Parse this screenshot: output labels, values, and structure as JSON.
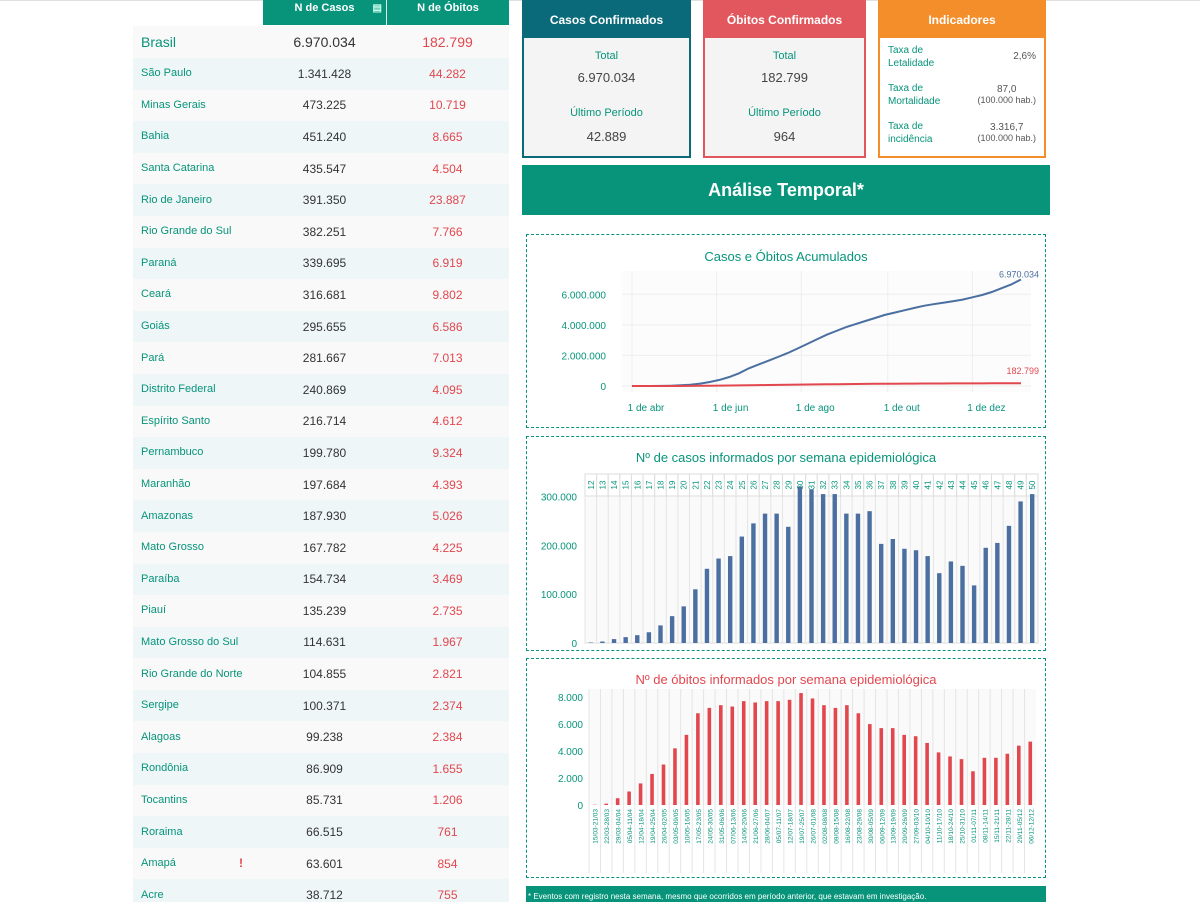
{
  "table": {
    "headers": {
      "cases": "N de Casos",
      "deaths": "N de Óbitos"
    },
    "rows": [
      {
        "name": "Brasil",
        "cases": "6.970.034",
        "deaths": "182.799"
      },
      {
        "name": "São Paulo",
        "cases": "1.341.428",
        "deaths": "44.282"
      },
      {
        "name": "Minas Gerais",
        "cases": "473.225",
        "deaths": "10.719"
      },
      {
        "name": "Bahia",
        "cases": "451.240",
        "deaths": "8.665"
      },
      {
        "name": "Santa Catarina",
        "cases": "435.547",
        "deaths": "4.504"
      },
      {
        "name": "Rio de Janeiro",
        "cases": "391.350",
        "deaths": "23.887"
      },
      {
        "name": "Rio Grande do Sul",
        "cases": "382.251",
        "deaths": "7.766"
      },
      {
        "name": "Paraná",
        "cases": "339.695",
        "deaths": "6.919"
      },
      {
        "name": "Ceará",
        "cases": "316.681",
        "deaths": "9.802"
      },
      {
        "name": "Goiás",
        "cases": "295.655",
        "deaths": "6.586"
      },
      {
        "name": "Pará",
        "cases": "281.667",
        "deaths": "7.013"
      },
      {
        "name": "Distrito Federal",
        "cases": "240.869",
        "deaths": "4.095"
      },
      {
        "name": "Espírito Santo",
        "cases": "216.714",
        "deaths": "4.612"
      },
      {
        "name": "Pernambuco",
        "cases": "199.780",
        "deaths": "9.324"
      },
      {
        "name": "Maranhão",
        "cases": "197.684",
        "deaths": "4.393"
      },
      {
        "name": "Amazonas",
        "cases": "187.930",
        "deaths": "5.026"
      },
      {
        "name": "Mato Grosso",
        "cases": "167.782",
        "deaths": "4.225"
      },
      {
        "name": "Paraíba",
        "cases": "154.734",
        "deaths": "3.469"
      },
      {
        "name": "Piauí",
        "cases": "135.239",
        "deaths": "2.735"
      },
      {
        "name": "Mato Grosso do Sul",
        "cases": "114.631",
        "deaths": "1.967"
      },
      {
        "name": "Rio Grande do Norte",
        "cases": "104.855",
        "deaths": "2.821"
      },
      {
        "name": "Sergipe",
        "cases": "100.371",
        "deaths": "2.374"
      },
      {
        "name": "Alagoas",
        "cases": "99.238",
        "deaths": "2.384"
      },
      {
        "name": "Rondônia",
        "cases": "86.909",
        "deaths": "1.655"
      },
      {
        "name": "Tocantins",
        "cases": "85.731",
        "deaths": "1.206"
      },
      {
        "name": "Roraima",
        "cases": "66.515",
        "deaths": "761"
      },
      {
        "name": "Amapá",
        "cases": "63.601",
        "deaths": "854",
        "alert": "!"
      },
      {
        "name": "Acre",
        "cases": "38.712",
        "deaths": "755"
      }
    ]
  },
  "cards": {
    "cases": {
      "title": "Casos Confirmados",
      "total_label": "Total",
      "total": "6.970.034",
      "last_label": "Último Período",
      "last": "42.889"
    },
    "deaths": {
      "title": "Óbitos Confirmados",
      "total_label": "Total",
      "total": "182.799",
      "last_label": "Último Período",
      "last": "964"
    },
    "indicators": {
      "title": "Indicadores",
      "items": [
        {
          "label": "Taxa de Letalidade",
          "value": "2,6%",
          "unit": ""
        },
        {
          "label": "Taxa de Mortalidade",
          "value": "87,0",
          "unit": "(100.000 hab.)"
        },
        {
          "label": "Taxa de incidência",
          "value": "3.316,7",
          "unit": "(100.000 hab.)"
        }
      ]
    }
  },
  "banner": "Análise Temporal*",
  "footer": "* Eventos com registro nesta semana, mesmo que ocorridos em período anterior, que estavam em investigação.",
  "colors": {
    "green": "#07947b",
    "blue": "#4a6fa0",
    "red": "#e2474e",
    "orange": "#f38e2b"
  },
  "chart_data": [
    {
      "type": "line",
      "title": "Casos e Óbitos Acumulados",
      "x_ticks": [
        "1 de abr",
        "1 de jun",
        "1 de ago",
        "1 de out",
        "1 de dez"
      ],
      "y_ticks": [
        "0",
        "2.000.000",
        "4.000.000",
        "6.000.000"
      ],
      "ylim": [
        0,
        7000000
      ],
      "series": [
        {
          "values_by_week": [
            0,
            300,
            2000,
            8000,
            20000,
            45000,
            85000,
            160000,
            260000,
            400000,
            590000,
            830000,
            1150000,
            1400000,
            1650000,
            1900000,
            2150000,
            2450000,
            2750000,
            3050000,
            3350000,
            3600000,
            3850000,
            4050000,
            4250000,
            4450000,
            4650000,
            4800000,
            4950000,
            5100000,
            5250000,
            5350000,
            5450000,
            5550000,
            5650000,
            5800000,
            5950000,
            6150000,
            6400000,
            6650000,
            6970034
          ],
          "end_label": "6.970.034",
          "color": "#4a6fa0"
        },
        {
          "values_by_week": [
            0,
            20,
            100,
            400,
            1200,
            3000,
            6000,
            11000,
            17000,
            25000,
            33000,
            42000,
            51000,
            60000,
            68000,
            75000,
            83000,
            91000,
            99000,
            107000,
            114000,
            121000,
            127000,
            133000,
            138000,
            143000,
            148000,
            152000,
            155000,
            158000,
            161000,
            163000,
            165000,
            167000,
            169000,
            171000,
            173000,
            175000,
            177000,
            180000,
            182799
          ],
          "end_label": "182.799",
          "color": "#e2474e"
        }
      ]
    },
    {
      "type": "bar",
      "title": "Nº de casos informados por semana epidemiológica",
      "categories": [
        "12",
        "13",
        "14",
        "15",
        "16",
        "17",
        "18",
        "19",
        "20",
        "21",
        "22",
        "23",
        "24",
        "25",
        "26",
        "27",
        "28",
        "29",
        "30",
        "31",
        "32",
        "33",
        "34",
        "35",
        "36",
        "37",
        "38",
        "39",
        "40",
        "41",
        "42",
        "43",
        "44",
        "45",
        "46",
        "47",
        "48",
        "49",
        "50"
      ],
      "values": [
        1000,
        3000,
        8000,
        12000,
        16000,
        22000,
        36000,
        55000,
        75000,
        110000,
        152000,
        173000,
        178000,
        218000,
        245000,
        265000,
        265000,
        238000,
        320000,
        315000,
        305000,
        305000,
        265000,
        265000,
        270000,
        203000,
        213000,
        193000,
        190000,
        178000,
        143000,
        167000,
        158000,
        118000,
        195000,
        205000,
        240000,
        290000,
        305000
      ],
      "y_ticks": [
        "0",
        "100.000",
        "200.000",
        "300.000"
      ],
      "ylim": [
        0,
        340000
      ]
    },
    {
      "type": "bar",
      "title": "Nº de óbitos informados por semana epidemiológica",
      "categories": [
        "15/03-21/03",
        "22/03-28/03",
        "29/03-04/04",
        "05/04-11/04",
        "12/04-18/04",
        "19/04-25/04",
        "26/04-02/05",
        "03/05-09/05",
        "10/05-16/05",
        "17/05-23/05",
        "24/05-30/05",
        "31/05-06/06",
        "07/06-13/06",
        "14/06-20/06",
        "21/06-27/06",
        "28/06-04/07",
        "05/07-11/07",
        "12/07-18/07",
        "19/07-25/07",
        "26/07-01/08",
        "02/08-08/08",
        "09/08-15/08",
        "16/08-22/08",
        "23/08-29/08",
        "30/08-05/09",
        "06/09-12/09",
        "13/09-19/09",
        "20/09-26/09",
        "27/09-03/10",
        "04/10-10/10",
        "11/10-17/10",
        "18/10-24/10",
        "25/10-31/10",
        "01/11-07/11",
        "08/11-14/11",
        "15/11-21/11",
        "22/11-28/11",
        "29/11-05/12",
        "06/12-12/12"
      ],
      "values": [
        20,
        100,
        500,
        1000,
        1600,
        2300,
        3000,
        4200,
        5200,
        6800,
        7200,
        7400,
        7300,
        7700,
        7600,
        7700,
        7700,
        7800,
        8300,
        7900,
        7400,
        7200,
        7400,
        6800,
        6000,
        5700,
        5700,
        5200,
        5100,
        4600,
        3900,
        3600,
        3400,
        2500,
        3500,
        3500,
        3800,
        4400,
        4700
      ],
      "y_ticks": [
        "0",
        "2.000",
        "4.000",
        "6.000",
        "8.000"
      ],
      "ylim": [
        0,
        8600
      ]
    }
  ]
}
